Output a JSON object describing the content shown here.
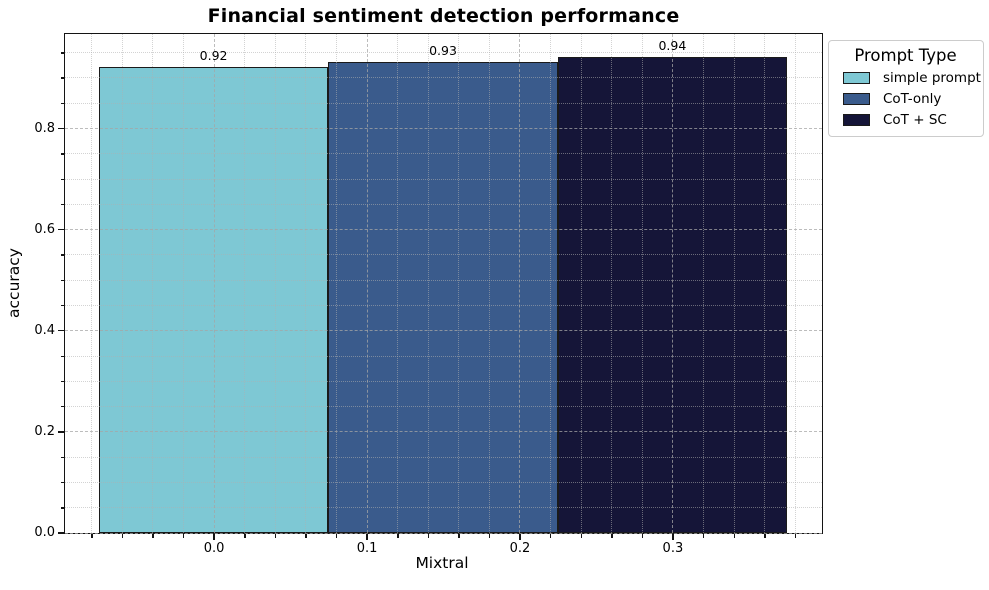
{
  "chart_data": {
    "type": "bar",
    "title": "Financial sentiment detection performance",
    "xlabel": "Mixtral",
    "ylabel": "accuracy",
    "xlim": [
      -0.0975,
      0.3975
    ],
    "ylim": [
      0,
      0.987
    ],
    "x_ticks": {
      "values": [
        0.0,
        0.1,
        0.2,
        0.3
      ],
      "labels": [
        "0.0",
        "0.1",
        "0.2",
        "0.3"
      ]
    },
    "y_ticks": {
      "values": [
        0.0,
        0.2,
        0.4,
        0.6,
        0.8
      ],
      "labels": [
        "0.0",
        "0.2",
        "0.4",
        "0.6",
        "0.8"
      ]
    },
    "x_minor_step": 0.02,
    "y_minor_step": 0.05,
    "grid": "major dashed and minor dotted gridlines, both axes, drawn above bars",
    "bar_width": 0.15,
    "bar_edge_color": "#1a1a1a",
    "series": [
      {
        "name": "simple prompt",
        "color": "#7ec8d4",
        "x": 0.0,
        "value": 0.92,
        "label": "0.92"
      },
      {
        "name": "CoT-only",
        "color": "#3a5b8c",
        "x": 0.15,
        "value": 0.93,
        "label": "0.93"
      },
      {
        "name": "CoT + SC",
        "color": "#151538",
        "x": 0.3,
        "value": 0.94,
        "label": "0.94"
      }
    ],
    "legend": {
      "title": "Prompt Type",
      "position": "outside upper right"
    }
  }
}
